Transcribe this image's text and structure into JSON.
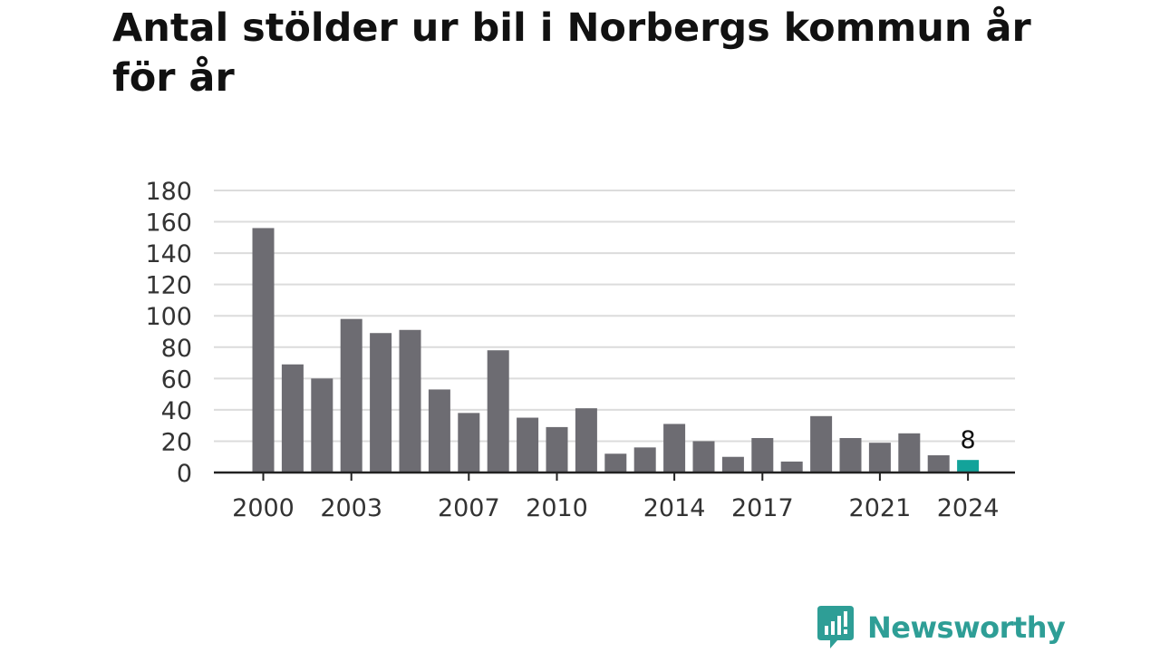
{
  "title": "Antal stölder ur bil i Norbergs kommun år för år",
  "brand": {
    "name": "Newsworthy",
    "icon": "newsworthy-logo-icon",
    "color": "#2e9e96"
  },
  "chart_data": {
    "type": "bar",
    "title": "Antal stölder ur bil i Norbergs kommun år för år",
    "xlabel": "",
    "ylabel": "",
    "categories": [
      "2000",
      "2001",
      "2002",
      "2003",
      "2004",
      "2005",
      "2006",
      "2007",
      "2008",
      "2009",
      "2010",
      "2011",
      "2012",
      "2013",
      "2014",
      "2015",
      "2016",
      "2017",
      "2018",
      "2019",
      "2020",
      "2021",
      "2022",
      "2023",
      "2024"
    ],
    "values": [
      156,
      69,
      60,
      98,
      89,
      91,
      53,
      38,
      78,
      35,
      29,
      41,
      12,
      16,
      31,
      20,
      10,
      22,
      7,
      36,
      22,
      19,
      25,
      11,
      8
    ],
    "x_tick_labels": [
      "2000",
      "2003",
      "2007",
      "2010",
      "2014",
      "2017",
      "2021",
      "2024"
    ],
    "y_ticks": [
      "0",
      "20",
      "40",
      "60",
      "80",
      "100",
      "120",
      "140",
      "160",
      "180"
    ],
    "ylim": [
      0,
      180
    ],
    "grid": true,
    "legend": "none",
    "highlight": {
      "category": "2024",
      "label": "8"
    },
    "colors": {
      "bar": "#6d6c72",
      "highlight": "#13a39a",
      "grid": "#dcdcdc",
      "axis": "#222222"
    }
  }
}
